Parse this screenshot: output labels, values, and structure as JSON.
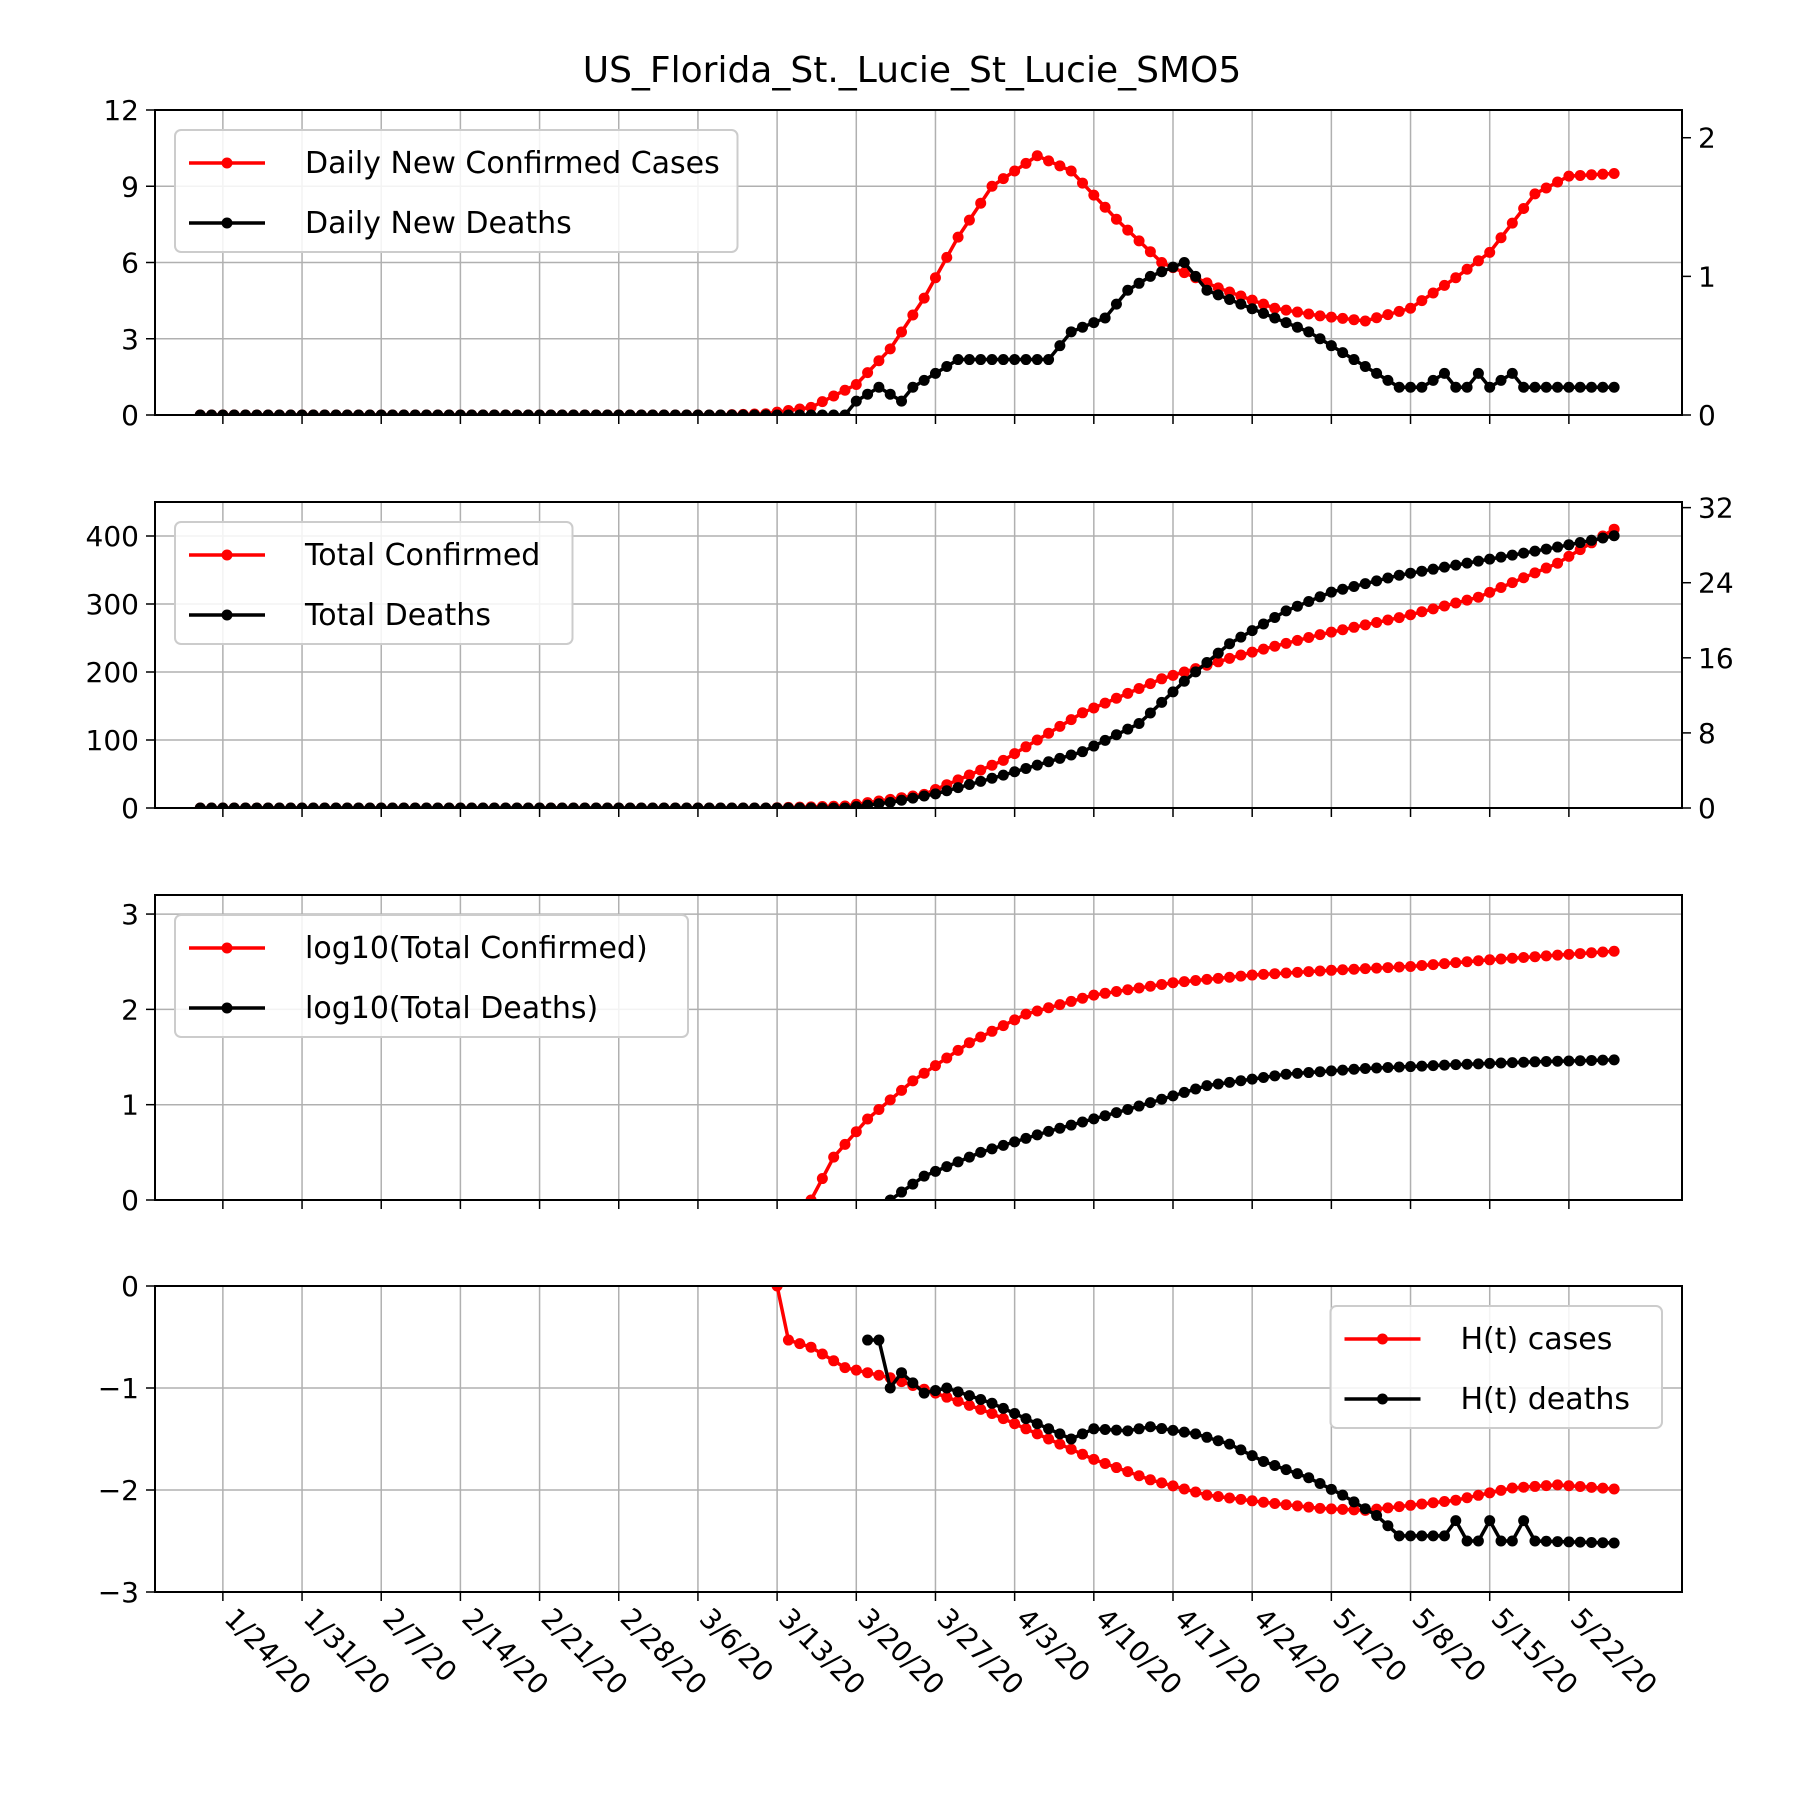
{
  "chart_data": {
    "title": "US_Florida_St._Lucie_St_Lucie_SMO5",
    "x_start_date": "1/22/20",
    "x_tick_labels": [
      "1/24/20",
      "1/31/20",
      "2/7/20",
      "2/14/20",
      "2/21/20",
      "2/28/20",
      "3/6/20",
      "3/13/20",
      "3/20/20",
      "3/27/20",
      "4/3/20",
      "4/10/20",
      "4/17/20",
      "4/24/20",
      "5/1/20",
      "5/8/20",
      "5/15/20",
      "5/22/20"
    ],
    "panels": [
      {
        "type": "line",
        "left_axis": {
          "ylim": [
            0,
            12
          ],
          "ticks": [
            "0",
            "3",
            "6",
            "9",
            "12"
          ]
        },
        "right_axis": {
          "ylim": [
            0,
            2.2
          ],
          "ticks": [
            "0",
            "1",
            "2"
          ]
        },
        "legend": {
          "position": "top-left",
          "entries": [
            "Daily New Confirmed Cases",
            "Daily New Deaths"
          ]
        },
        "series": [
          {
            "name": "Daily New Confirmed Cases",
            "color": "#ff0000",
            "axis": "left",
            "points": [
              [
                "1/22/20",
                0
              ],
              [
                "3/8/20",
                0
              ],
              [
                "3/12/20",
                0.05
              ],
              [
                "3/16/20",
                0.3
              ],
              [
                "3/20/20",
                1.2
              ],
              [
                "3/23/20",
                2.6
              ],
              [
                "3/26/20",
                4.6
              ],
              [
                "3/29/20",
                7.0
              ],
              [
                "4/1/20",
                9.0
              ],
              [
                "4/5/20",
                10.2
              ],
              [
                "4/8/20",
                9.6
              ],
              [
                "4/12/20",
                7.7
              ],
              [
                "4/16/20",
                6.0
              ],
              [
                "4/21/20",
                5.0
              ],
              [
                "4/26/20",
                4.2
              ],
              [
                "4/30/20",
                3.9
              ],
              [
                "5/4/20",
                3.7
              ],
              [
                "5/8/20",
                4.2
              ],
              [
                "5/12/20",
                5.4
              ],
              [
                "5/15/20",
                6.4
              ],
              [
                "5/19/20",
                8.7
              ],
              [
                "5/22/20",
                9.4
              ],
              [
                "5/26/20",
                9.5
              ]
            ]
          },
          {
            "name": "Daily New Deaths",
            "color": "#000000",
            "axis": "right",
            "points": [
              [
                "1/22/20",
                0
              ],
              [
                "3/19/20",
                0
              ],
              [
                "3/20/20",
                0.1
              ],
              [
                "3/22/20",
                0.2
              ],
              [
                "3/24/20",
                0.1
              ],
              [
                "3/25/20",
                0.2
              ],
              [
                "3/27/20",
                0.3
              ],
              [
                "3/29/20",
                0.4
              ],
              [
                "4/1/20",
                0.4
              ],
              [
                "4/6/20",
                0.4
              ],
              [
                "4/8/20",
                0.6
              ],
              [
                "4/11/20",
                0.7
              ],
              [
                "4/13/20",
                0.9
              ],
              [
                "4/15/20",
                1.0
              ],
              [
                "4/18/20",
                1.1
              ],
              [
                "4/20/20",
                0.9
              ],
              [
                "4/23/20",
                0.8
              ],
              [
                "4/26/20",
                0.7
              ],
              [
                "4/29/20",
                0.6
              ],
              [
                "5/1/20",
                0.5
              ],
              [
                "5/3/20",
                0.4
              ],
              [
                "5/5/20",
                0.3
              ],
              [
                "5/7/20",
                0.2
              ],
              [
                "5/9/20",
                0.2
              ],
              [
                "5/11/20",
                0.3
              ],
              [
                "5/12/20",
                0.2
              ],
              [
                "5/13/20",
                0.2
              ],
              [
                "5/14/20",
                0.3
              ],
              [
                "5/15/20",
                0.2
              ],
              [
                "5/17/20",
                0.3
              ],
              [
                "5/18/20",
                0.2
              ],
              [
                "5/26/20",
                0.2
              ]
            ]
          }
        ]
      },
      {
        "type": "line",
        "left_axis": {
          "ylim": [
            0,
            450
          ],
          "ticks": [
            "0",
            "100",
            "200",
            "300",
            "400"
          ]
        },
        "right_axis": {
          "ylim": [
            0,
            32.6
          ],
          "ticks": [
            "0",
            "8",
            "16",
            "24",
            "32"
          ]
        },
        "legend": {
          "position": "top-left",
          "entries": [
            "Total Confirmed",
            "Total Deaths"
          ]
        },
        "series": [
          {
            "name": "Total Confirmed",
            "color": "#ff0000",
            "axis": "left",
            "points": [
              [
                "1/22/20",
                0
              ],
              [
                "3/12/20",
                0
              ],
              [
                "3/19/20",
                3
              ],
              [
                "3/26/20",
                20
              ],
              [
                "4/2/20",
                70
              ],
              [
                "4/9/20",
                140
              ],
              [
                "4/16/20",
                190
              ],
              [
                "4/23/20",
                225
              ],
              [
                "4/30/20",
                255
              ],
              [
                "5/7/20",
                280
              ],
              [
                "5/14/20",
                310
              ],
              [
                "5/21/20",
                360
              ],
              [
                "5/26/20",
                410
              ]
            ]
          },
          {
            "name": "Total Deaths",
            "color": "#000000",
            "axis": "right",
            "points": [
              [
                "1/22/20",
                0
              ],
              [
                "3/19/20",
                0
              ],
              [
                "3/23/20",
                0.6
              ],
              [
                "3/27/20",
                1.5
              ],
              [
                "4/2/20",
                3.5
              ],
              [
                "4/9/20",
                6.0
              ],
              [
                "4/14/20",
                9.0
              ],
              [
                "4/18/20",
                13.5
              ],
              [
                "4/22/20",
                17.5
              ],
              [
                "4/27/20",
                21.0
              ],
              [
                "5/1/20",
                23.0
              ],
              [
                "5/7/20",
                24.8
              ],
              [
                "5/14/20",
                26.3
              ],
              [
                "5/21/20",
                27.8
              ],
              [
                "5/26/20",
                29.0
              ]
            ]
          }
        ]
      },
      {
        "type": "line",
        "left_axis": {
          "ylim": [
            0,
            3.2
          ],
          "ticks": [
            "0",
            "1",
            "2",
            "3"
          ]
        },
        "legend": {
          "position": "top-left",
          "entries": [
            "log10(Total Confirmed)",
            "log10(Total Deaths)"
          ]
        },
        "series": [
          {
            "name": "log10(Total Confirmed)",
            "color": "#ff0000",
            "axis": "left",
            "points": [
              [
                "3/16/20",
                0
              ],
              [
                "3/18/20",
                0.45
              ],
              [
                "3/21/20",
                0.85
              ],
              [
                "3/25/20",
                1.25
              ],
              [
                "3/30/20",
                1.65
              ],
              [
                "4/4/20",
                1.95
              ],
              [
                "4/10/20",
                2.15
              ],
              [
                "4/17/20",
                2.28
              ],
              [
                "4/24/20",
                2.36
              ],
              [
                "5/1/20",
                2.41
              ],
              [
                "5/8/20",
                2.45
              ],
              [
                "5/15/20",
                2.52
              ],
              [
                "5/26/20",
                2.61
              ]
            ]
          },
          {
            "name": "log10(Total Deaths)",
            "color": "#000000",
            "axis": "left",
            "points": [
              [
                "3/23/20",
                0
              ],
              [
                "3/26/20",
                0.25
              ],
              [
                "3/31/20",
                0.5
              ],
              [
                "4/6/20",
                0.72
              ],
              [
                "4/13/20",
                0.95
              ],
              [
                "4/20/20",
                1.2
              ],
              [
                "4/27/20",
                1.32
              ],
              [
                "5/4/20",
                1.38
              ],
              [
                "5/12/20",
                1.42
              ],
              [
                "5/19/20",
                1.45
              ],
              [
                "5/26/20",
                1.47
              ]
            ]
          }
        ]
      },
      {
        "type": "line",
        "left_axis": {
          "ylim": [
            -3,
            0
          ],
          "ticks": [
            "−3",
            "−2",
            "−1",
            "0"
          ]
        },
        "legend": {
          "position": "top-right",
          "entries": [
            "H(t) cases",
            "H(t) deaths"
          ]
        },
        "series": [
          {
            "name": "H(t) cases",
            "color": "#ff0000",
            "axis": "left",
            "points": [
              [
                "3/13/20",
                0
              ],
              [
                "3/14/20",
                -0.53
              ],
              [
                "3/16/20",
                -0.6
              ],
              [
                "3/19/20",
                -0.8
              ],
              [
                "3/23/20",
                -0.9
              ],
              [
                "3/27/20",
                -1.05
              ],
              [
                "4/1/20",
                -1.25
              ],
              [
                "4/6/20",
                -1.5
              ],
              [
                "4/10/20",
                -1.7
              ],
              [
                "4/15/20",
                -1.9
              ],
              [
                "4/20/20",
                -2.05
              ],
              [
                "4/25/20",
                -2.12
              ],
              [
                "4/30/20",
                -2.18
              ],
              [
                "5/4/20",
                -2.2
              ],
              [
                "5/8/20",
                -2.15
              ],
              [
                "5/12/20",
                -2.1
              ],
              [
                "5/17/20",
                -1.98
              ],
              [
                "5/21/20",
                -1.95
              ],
              [
                "5/26/20",
                -1.99
              ]
            ]
          },
          {
            "name": "H(t) deaths",
            "color": "#000000",
            "axis": "left",
            "points": [
              [
                "3/21/20",
                -0.53
              ],
              [
                "3/22/20",
                -0.53
              ],
              [
                "3/23/20",
                -1.0
              ],
              [
                "3/24/20",
                -0.85
              ],
              [
                "3/26/20",
                -1.05
              ],
              [
                "3/28/20",
                -1.0
              ],
              [
                "4/1/20",
                -1.15
              ],
              [
                "4/4/20",
                -1.3
              ],
              [
                "4/8/20",
                -1.5
              ],
              [
                "4/10/20",
                -1.4
              ],
              [
                "4/13/20",
                -1.42
              ],
              [
                "4/15/20",
                -1.38
              ],
              [
                "4/19/20",
                -1.45
              ],
              [
                "4/22/20",
                -1.55
              ],
              [
                "4/25/20",
                -1.72
              ],
              [
                "4/29/20",
                -1.88
              ],
              [
                "5/2/20",
                -2.05
              ],
              [
                "5/5/20",
                -2.25
              ],
              [
                "5/7/20",
                -2.45
              ],
              [
                "5/11/20",
                -2.45
              ],
              [
                "5/12/20",
                -2.3
              ],
              [
                "5/13/20",
                -2.5
              ],
              [
                "5/14/20",
                -2.5
              ],
              [
                "5/15/20",
                -2.3
              ],
              [
                "5/16/20",
                -2.5
              ],
              [
                "5/17/20",
                -2.5
              ],
              [
                "5/18/20",
                -2.3
              ],
              [
                "5/19/20",
                -2.5
              ],
              [
                "5/26/20",
                -2.52
              ]
            ]
          }
        ]
      }
    ]
  }
}
